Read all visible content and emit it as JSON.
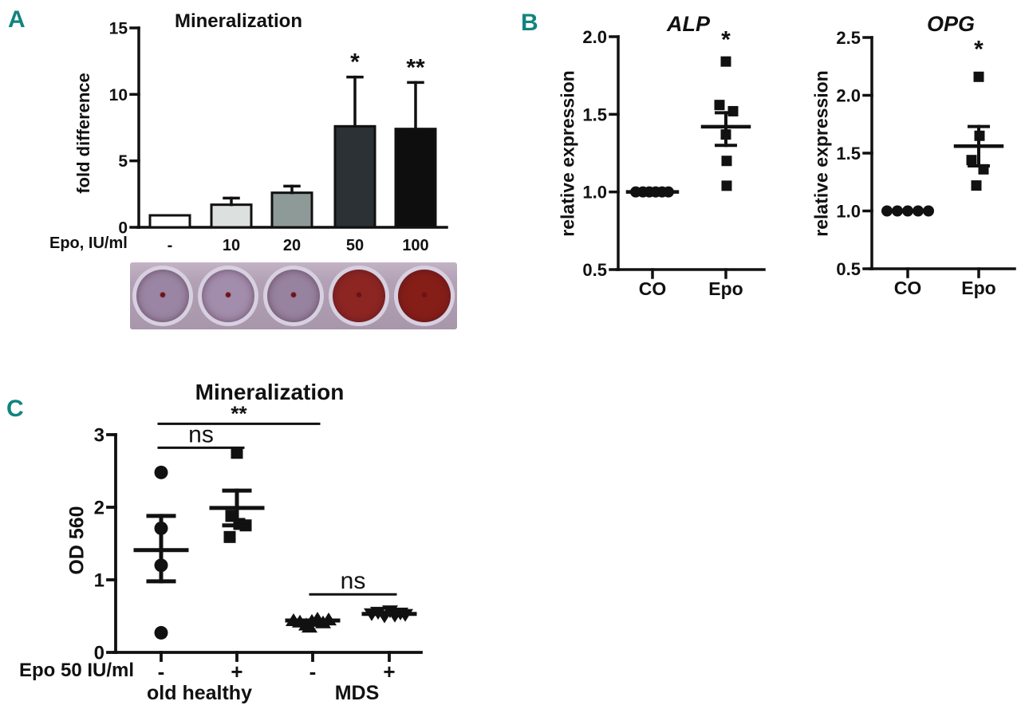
{
  "accent_color": "#12847f",
  "panels": {
    "a": "A",
    "b": "B",
    "c": "C"
  },
  "chart_data": [
    {
      "id": "A",
      "type": "bar",
      "title": "Mineralization",
      "ylabel": "fold difference",
      "xlabel": "Epo, IU/ml",
      "categories": [
        "-",
        "10",
        "20",
        "50",
        "100"
      ],
      "values": [
        0.9,
        1.7,
        2.6,
        7.6,
        7.4
      ],
      "errors_up": [
        0,
        0.5,
        0.5,
        3.7,
        3.5
      ],
      "significance": [
        "",
        "",
        "",
        "*",
        "**"
      ],
      "bar_colors": [
        "#ffffff",
        "#dce1e0",
        "#8e9a98",
        "#2b3135",
        "#0e0e0e"
      ],
      "ylim": [
        0,
        15
      ],
      "yticks": [
        "0",
        "5",
        "10",
        "15"
      ]
    },
    {
      "id": "ALP",
      "type": "scatter",
      "title": "ALP",
      "ylabel": "relative expression",
      "categories": [
        "CO",
        "Epo"
      ],
      "ylim": [
        0.5,
        2.0
      ],
      "yticks": [
        "0.5",
        "1.0",
        "1.5",
        "2.0"
      ],
      "groups": [
        {
          "label": "CO",
          "marker": "circle",
          "mean": 1.0,
          "mean_halfwidth": 31,
          "points": [
            {
              "dx": -21,
              "y": 1.0
            },
            {
              "dx": -12,
              "y": 1.0
            },
            {
              "dx": -4,
              "y": 1.0
            },
            {
              "dx": 4,
              "y": 1.0
            },
            {
              "dx": 12,
              "y": 1.0
            },
            {
              "dx": 20,
              "y": 1.0
            }
          ]
        },
        {
          "label": "Epo",
          "marker": "square",
          "mean": 1.42,
          "err_hi": 1.51,
          "err_lo": 1.3,
          "sig": "*",
          "sig_y": 1.93,
          "points": [
            {
              "dx": 0,
              "y": 1.84
            },
            {
              "dx": -8,
              "y": 1.56
            },
            {
              "dx": 9,
              "y": 1.52
            },
            {
              "dx": 0,
              "y": 1.37
            },
            {
              "dx": 1,
              "y": 1.2
            },
            {
              "dx": 1,
              "y": 1.04
            }
          ]
        }
      ]
    },
    {
      "id": "OPG",
      "type": "scatter",
      "title": "OPG",
      "ylabel": "relative expression",
      "categories": [
        "CO",
        "Epo"
      ],
      "ylim": [
        0.5,
        2.5
      ],
      "yticks": [
        "0.5",
        "1.0",
        "1.5",
        "2.0",
        "2.5"
      ],
      "groups": [
        {
          "label": "CO",
          "marker": "circle",
          "points": [
            {
              "dx": -26,
              "y": 1.0
            },
            {
              "dx": -13,
              "y": 1.0
            },
            {
              "dx": 0,
              "y": 1.0
            },
            {
              "dx": 13,
              "y": 1.0
            },
            {
              "dx": 26,
              "y": 1.0
            }
          ]
        },
        {
          "label": "Epo",
          "marker": "square",
          "mean": 1.56,
          "err_hi": 1.73,
          "err_lo": 1.39,
          "sig": "*",
          "sig_y": 2.33,
          "points": [
            {
              "dx": 0,
              "y": 2.16
            },
            {
              "dx": 1,
              "y": 1.65
            },
            {
              "dx": -9,
              "y": 1.44
            },
            {
              "dx": 6,
              "y": 1.36
            },
            {
              "dx": -3,
              "y": 1.22
            }
          ]
        }
      ]
    },
    {
      "id": "C",
      "type": "scatter",
      "title": "Mineralization",
      "ylabel": "OD 560",
      "xlabel": "Epo 50 IU/ml",
      "categories": [
        "-",
        "+",
        "-",
        "+"
      ],
      "group_labels": [
        {
          "text": "old healthy"
        },
        {
          "text": "MDS"
        }
      ],
      "ylim": [
        0,
        3
      ],
      "yticks": [
        "0",
        "1",
        "2",
        "3"
      ],
      "groups": [
        {
          "label": "old healthy -",
          "marker": "circle",
          "mean": 1.41,
          "err_hi": 1.88,
          "err_lo": 0.98,
          "points": [
            {
              "dx": 0,
              "y": 2.48
            },
            {
              "dx": 0,
              "y": 1.71
            },
            {
              "dx": 0,
              "y": 1.2
            },
            {
              "dx": 0,
              "y": 0.27
            }
          ]
        },
        {
          "label": "old healthy +",
          "marker": "square",
          "mean": 1.99,
          "err_hi": 2.23,
          "err_lo": 1.75,
          "points": [
            {
              "dx": 0,
              "y": 2.75
            },
            {
              "dx": -7,
              "y": 1.88
            },
            {
              "dx": 3,
              "y": 1.77
            },
            {
              "dx": 11,
              "y": 1.75
            },
            {
              "dx": -9,
              "y": 1.59
            }
          ]
        },
        {
          "label": "MDS -",
          "marker": "triangle-up",
          "mean": 0.44,
          "points": [
            {
              "dx": -24,
              "y": 0.44
            },
            {
              "dx": -16,
              "y": 0.42
            },
            {
              "dx": -8,
              "y": 0.38
            },
            {
              "dx": -1,
              "y": 0.43
            },
            {
              "dx": 6,
              "y": 0.46
            },
            {
              "dx": 13,
              "y": 0.41
            },
            {
              "dx": 20,
              "y": 0.45
            },
            {
              "dx": -4,
              "y": 0.35
            }
          ]
        },
        {
          "label": "MDS +",
          "marker": "triangle-down",
          "mean": 0.53,
          "points": [
            {
              "dx": -22,
              "y": 0.53
            },
            {
              "dx": -14,
              "y": 0.55
            },
            {
              "dx": -6,
              "y": 0.5
            },
            {
              "dx": 1,
              "y": 0.57
            },
            {
              "dx": 7,
              "y": 0.51
            },
            {
              "dx": 14,
              "y": 0.54
            },
            {
              "dx": 20,
              "y": 0.52
            }
          ]
        }
      ],
      "brackets": [
        {
          "from": 0,
          "to": 1,
          "y": 2.82,
          "label": "ns"
        },
        {
          "from": 0,
          "to": 2,
          "y": 3.15,
          "label": "**"
        },
        {
          "from": 2,
          "to": 3,
          "y": 0.8,
          "label": "ns"
        }
      ]
    }
  ],
  "wells": {
    "plate_color": "#b2a0b4",
    "ring_color": "#d7d0e0",
    "dot_color": "#6b1217",
    "well_colors": [
      "#9a86a4",
      "#a28dac",
      "#97829f",
      "#8d2622",
      "#861e18"
    ]
  }
}
